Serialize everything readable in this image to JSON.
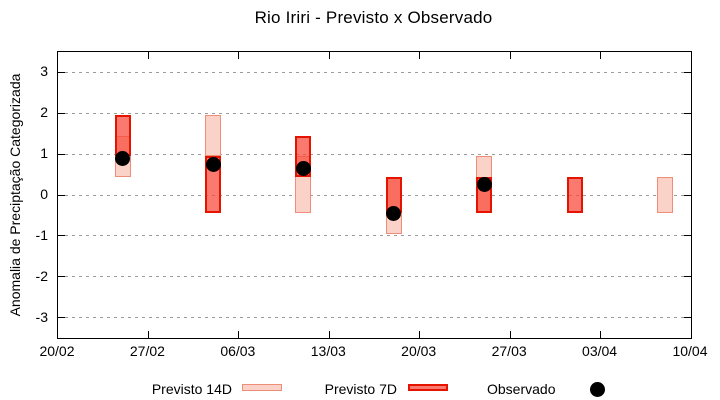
{
  "title": "Rio Iriri - Previsto x Observado",
  "legend": {
    "p14_label": "Previsto 14D",
    "p7_label": "Previsto 7D",
    "obs_label": "Observado"
  },
  "colors": {
    "p14_fill": "#fbd2c8",
    "p14_border": "#ef8e78",
    "p7_fill": "rgba(250,70,55,0.72)",
    "p7_border": "#e51400",
    "observed": "#000000",
    "grid": "#9b9b9b",
    "axis": "#000000"
  },
  "chart_data": {
    "type": "bar",
    "title": "Rio Iriri - Previsto x Observado",
    "xlabel": "",
    "ylabel": "Anomalia de Preciptação Categorizada",
    "ylim": [
      -3.5,
      3.5
    ],
    "y_ticks": [
      3,
      2,
      1,
      0,
      -1,
      -2,
      -3
    ],
    "x_tick_labels": [
      "20/02",
      "27/02",
      "06/03",
      "13/03",
      "20/03",
      "27/03",
      "03/04",
      "10/04"
    ],
    "x_tick_days": [
      0,
      7,
      14,
      21,
      28,
      35,
      42,
      49
    ],
    "xlim_days": [
      0,
      49
    ],
    "grid": "horizontal-dashed",
    "legend_position": "bottom-outside",
    "series": [
      {
        "name": "Previsto 14D",
        "kind": "range-bar"
      },
      {
        "name": "Previsto 7D",
        "kind": "range-bar"
      },
      {
        "name": "Observado",
        "kind": "point"
      }
    ],
    "bars": [
      {
        "day": 5,
        "p14": [
          0.45,
          1.45
        ],
        "p7": [
          0.95,
          1.95
        ],
        "obs": 0.9
      },
      {
        "day": 12,
        "p14": [
          0.95,
          1.95
        ],
        "p7": [
          -0.45,
          0.95
        ],
        "obs": 0.75
      },
      {
        "day": 19,
        "p14": [
          -0.45,
          0.95
        ],
        "p7": [
          0.45,
          1.45
        ],
        "obs": 0.65
      },
      {
        "day": 26,
        "p14": [
          -0.95,
          0.45
        ],
        "p7": [
          -0.45,
          0.45
        ],
        "obs": -0.45
      },
      {
        "day": 33,
        "p14": [
          -0.45,
          0.95
        ],
        "p7": [
          -0.45,
          0.45
        ],
        "obs": 0.25
      },
      {
        "day": 40,
        "p14": null,
        "p7": [
          -0.45,
          0.45
        ],
        "obs": null
      },
      {
        "day": 47,
        "p14": [
          -0.45,
          0.45
        ],
        "p7": null,
        "obs": null
      }
    ]
  }
}
